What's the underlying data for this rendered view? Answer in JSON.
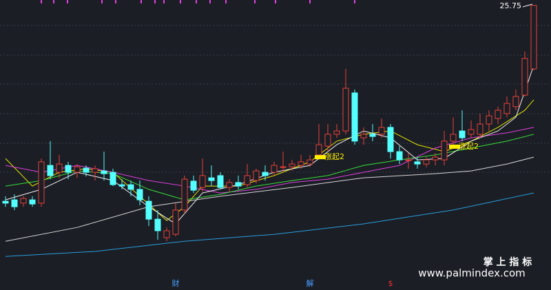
{
  "chart_data": {
    "type": "candlestick",
    "ylim": [
      15.43,
      25.95
    ],
    "up_color": "#e8413a",
    "down_color": "#54ffff",
    "open": [
      18.65,
      18.7,
      18.58,
      18.7,
      18.58,
      19.95,
      19.7,
      19.95,
      19.7,
      19.85,
      19.7,
      19.75,
      19.7,
      19.25,
      19.25,
      19.08,
      18.65,
      18.0,
      17.33,
      17.45,
      18.33,
      19.38,
      19.15,
      19.5,
      19.58,
      19.15,
      19.33,
      19.25,
      19.4,
      19.7,
      19.7,
      19.9,
      19.9,
      19.95,
      20.0,
      20.33,
      20.65,
      21.08,
      21.2,
      22.58,
      20.95,
      21.08,
      21.08,
      21.33,
      20.45,
      20.15,
      20.08,
      20.0,
      20.15,
      20.15,
      20.83,
      21.2,
      21.08,
      21.08,
      21.45,
      21.65,
      21.83,
      22.08,
      22.5,
      23.45
    ],
    "high": [
      18.83,
      18.9,
      18.83,
      18.83,
      20.2,
      20.83,
      20.33,
      20.08,
      20.0,
      19.95,
      19.95,
      20.45,
      19.83,
      19.45,
      19.4,
      19.4,
      18.83,
      18.33,
      17.7,
      18.58,
      19.58,
      19.58,
      20.2,
      19.95,
      19.7,
      19.45,
      19.58,
      20.0,
      19.83,
      19.95,
      20.08,
      20.45,
      20.15,
      20.33,
      20.33,
      21.45,
      21.45,
      21.45,
      23.45,
      22.7,
      21.33,
      21.45,
      21.65,
      21.45,
      20.65,
      20.4,
      20.25,
      20.25,
      20.4,
      21.2,
      21.7,
      21.95,
      21.58,
      21.83,
      21.95,
      22.08,
      22.45,
      22.7,
      24.08,
      25.75
    ],
    "low": [
      18.45,
      18.33,
      18.45,
      18.45,
      18.45,
      19.45,
      19.5,
      19.45,
      19.5,
      19.55,
      19.4,
      19.4,
      19.2,
      19.08,
      18.83,
      18.5,
      17.75,
      17.25,
      17.2,
      17.38,
      18.2,
      18.95,
      19.0,
      19.2,
      19.08,
      19.0,
      19.08,
      19.15,
      19.3,
      19.4,
      19.58,
      19.7,
      19.75,
      19.83,
      19.9,
      20.15,
      20.45,
      20.95,
      21.08,
      20.7,
      20.7,
      20.83,
      20.95,
      20.2,
      20.0,
      19.83,
      19.83,
      19.88,
      19.95,
      19.95,
      20.58,
      20.83,
      20.95,
      20.95,
      21.2,
      21.45,
      21.7,
      21.95,
      22.45,
      23.4
    ],
    "close": [
      18.58,
      18.45,
      18.75,
      18.55,
      20.08,
      19.58,
      20.0,
      19.7,
      19.9,
      19.7,
      19.83,
      19.65,
      19.25,
      19.2,
      19.08,
      18.7,
      18.0,
      17.58,
      17.58,
      18.33,
      19.45,
      19.05,
      19.58,
      19.4,
      19.15,
      19.33,
      19.2,
      19.58,
      19.75,
      19.58,
      19.95,
      19.9,
      20.0,
      20.08,
      20.15,
      20.7,
      21.08,
      21.2,
      22.75,
      20.83,
      21.08,
      21.0,
      21.33,
      20.45,
      20.15,
      20.15,
      20.0,
      20.15,
      20.25,
      20.83,
      21.08,
      20.95,
      21.25,
      21.45,
      21.75,
      21.95,
      22.2,
      22.45,
      23.83,
      25.75
    ],
    "lines": [
      {
        "color": "#e6e600",
        "x": [
          0,
          3,
          6,
          9,
          12,
          15,
          18,
          20,
          22,
          26,
          30,
          34,
          37,
          40,
          43,
          46,
          49,
          52,
          55,
          58,
          59
        ],
        "values": [
          20.2,
          19.2,
          19.7,
          19.83,
          19.7,
          18.83,
          17.95,
          18.45,
          19.2,
          19.2,
          19.58,
          20.08,
          20.83,
          21.08,
          21.2,
          20.7,
          20.45,
          20.83,
          21.33,
          21.95,
          22.33
        ]
      },
      {
        "color": "#e040e0",
        "x": [
          0,
          4,
          8,
          12,
          16,
          20,
          24,
          28,
          32,
          36,
          40,
          44,
          48,
          52,
          56,
          59
        ],
        "values": [
          19.95,
          19.7,
          19.95,
          19.7,
          19.4,
          19.2,
          18.95,
          19.08,
          19.33,
          19.45,
          19.7,
          19.95,
          20.58,
          20.95,
          21.13,
          21.33
        ]
      },
      {
        "color": "#3adf3a",
        "x": [
          0,
          4,
          8,
          12,
          16,
          20,
          24,
          28,
          32,
          36,
          40,
          44,
          48,
          52,
          56,
          59
        ],
        "values": [
          19.2,
          19.4,
          19.75,
          19.65,
          19.08,
          18.7,
          18.9,
          19.2,
          19.4,
          19.58,
          19.95,
          20.15,
          20.33,
          20.58,
          20.83,
          21.08
        ]
      },
      {
        "color": "#d8d8d8",
        "x": [
          0,
          8,
          16,
          24,
          32,
          40,
          48,
          52,
          56,
          59
        ],
        "values": [
          17.2,
          17.7,
          18.45,
          18.83,
          19.15,
          19.5,
          19.65,
          19.75,
          20.0,
          20.25
        ]
      },
      {
        "color": "#f2f2f2",
        "x": [
          0,
          4,
          8,
          12,
          16,
          19,
          22,
          26,
          30,
          34,
          37,
          40,
          43,
          46,
          49,
          52,
          55,
          57,
          59
        ],
        "values": [
          18.7,
          19.08,
          19.7,
          19.4,
          18.45,
          17.83,
          18.95,
          19.25,
          19.7,
          19.95,
          20.7,
          21.2,
          20.95,
          20.15,
          20.2,
          20.83,
          21.2,
          21.7,
          23.58
        ]
      },
      {
        "color": "#2a9fe0",
        "x": [
          0,
          10,
          20,
          30,
          40,
          50,
          59
        ],
        "values": [
          16.65,
          16.83,
          17.2,
          17.45,
          17.83,
          18.33,
          18.95
        ]
      }
    ],
    "signals": [
      {
        "index": 35,
        "text": "涨起2"
      },
      {
        "index": 50,
        "text": "涨起2"
      }
    ],
    "events": [
      {
        "index": 19,
        "text": "财",
        "color": "#4aa0ff"
      },
      {
        "index": 34,
        "text": "解",
        "color": "#4aa0ff"
      },
      {
        "index": 43,
        "text": "$",
        "color": "#ff3030"
      }
    ],
    "watermark": {
      "title": "掌 上 指 标",
      "url": "www.palmindex.com"
    }
  }
}
